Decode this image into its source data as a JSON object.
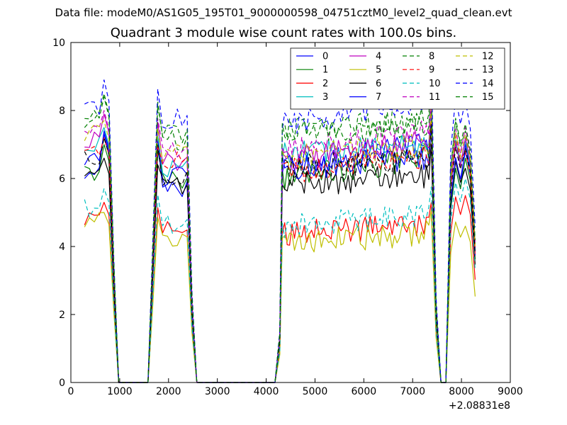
{
  "header": {
    "data_file": "Data file: modeM0/AS1G05_195T01_9000000598_04751cztM0_level2_quad_clean.evt"
  },
  "chart_data": {
    "type": "line",
    "title": "Quadrant 3 module wise count rates with 100.0s bins.",
    "xlabel": "",
    "ylabel": "",
    "xlim": [
      0,
      9000
    ],
    "ylim": [
      0,
      10
    ],
    "x_ticks": [
      0,
      1000,
      2000,
      3000,
      4000,
      5000,
      6000,
      7000,
      8000,
      9000
    ],
    "y_ticks": [
      0,
      2,
      4,
      6,
      8,
      10
    ],
    "x_offset_label": "+2.08831e8",
    "grid": false,
    "legend_placement": "top-right",
    "legend_columns": 4,
    "segments": [
      {
        "x": [
          280,
          380,
          480,
          580,
          680,
          780,
          880,
          980
        ]
      },
      {
        "x": [
          1580,
          1680,
          1780,
          1880,
          1980,
          2080,
          2180,
          2280,
          2380,
          2480,
          2580
        ]
      },
      {
        "x": [
          4180,
          4280,
          4330,
          4380,
          4430,
          4480,
          4530,
          4580,
          4630,
          4680,
          4730,
          4780,
          4830,
          4880,
          4930,
          4980,
          5030,
          5080,
          5130,
          5180,
          5230,
          5280,
          5330,
          5380,
          5430,
          5480,
          5530,
          5580,
          5630,
          5680,
          5730,
          5780,
          5830,
          5880,
          5930,
          5980,
          6030,
          6080,
          6130,
          6180,
          6230,
          6280,
          6330,
          6380,
          6430,
          6480,
          6530,
          6580,
          6630,
          6680,
          6730,
          6780,
          6830,
          6880,
          6930,
          6980,
          7030,
          7080,
          7130,
          7180,
          7230,
          7280,
          7330,
          7380,
          7480,
          7580
        ]
      },
      {
        "x": [
          7680,
          7780,
          7880,
          7980,
          8080,
          8180,
          8280
        ]
      }
    ],
    "gap_x": [
      1000,
      1580,
      2600,
      4180,
      7580,
      7780
    ],
    "series": [
      {
        "name": "0",
        "color": "#0000ff",
        "dash": "solid",
        "levels": [
          6.3,
          7.4,
          5.8,
          6.4,
          7.0,
          6.0,
          7.0
        ]
      },
      {
        "name": "1",
        "color": "#008000",
        "dash": "solid",
        "levels": [
          6.1,
          7.0,
          5.9,
          6.0,
          6.6,
          6.0,
          6.6
        ]
      },
      {
        "name": "2",
        "color": "#ff0000",
        "dash": "solid",
        "levels": [
          4.9,
          5.3,
          4.4,
          4.4,
          4.6,
          5.2,
          5.5
        ]
      },
      {
        "name": "3",
        "color": "#00bfbf",
        "dash": "solid",
        "levels": [
          6.8,
          7.5,
          6.4,
          6.7,
          7.0,
          6.8,
          7.1
        ]
      },
      {
        "name": "4",
        "color": "#bf00bf",
        "dash": "solid",
        "levels": [
          7.0,
          7.9,
          6.5,
          6.5,
          7.2,
          6.7,
          7.2
        ]
      },
      {
        "name": "5",
        "color": "#bfbf00",
        "dash": "solid",
        "levels": [
          4.6,
          5.0,
          4.2,
          4.1,
          4.4,
          4.5,
          4.6
        ]
      },
      {
        "name": "6",
        "color": "#000000",
        "dash": "solid",
        "levels": [
          6.0,
          6.6,
          5.7,
          5.8,
          6.1,
          6.2,
          6.3
        ]
      },
      {
        "name": "7",
        "color": "#0000ff",
        "dash": "solid",
        "levels": [
          6.6,
          7.3,
          6.0,
          6.3,
          6.6,
          6.3,
          6.8
        ]
      },
      {
        "name": "8",
        "color": "#008000",
        "dash": "dashed",
        "levels": [
          7.6,
          8.5,
          7.1,
          7.4,
          7.7,
          7.3,
          7.4
        ]
      },
      {
        "name": "9",
        "color": "#ff0000",
        "dash": "dashed",
        "levels": [
          6.8,
          7.2,
          6.5,
          6.2,
          6.7,
          6.9,
          6.8
        ]
      },
      {
        "name": "10",
        "color": "#00bfbf",
        "dash": "dashed",
        "levels": [
          5.1,
          5.7,
          4.7,
          4.6,
          5.0,
          5.6,
          6.0
        ]
      },
      {
        "name": "11",
        "color": "#bf00bf",
        "dash": "dashed",
        "levels": [
          7.2,
          8.0,
          6.8,
          6.8,
          7.4,
          7.1,
          7.5
        ]
      },
      {
        "name": "12",
        "color": "#bfbf00",
        "dash": "dashed",
        "levels": [
          7.3,
          7.7,
          6.8,
          6.6,
          7.0,
          7.0,
          7.3
        ]
      },
      {
        "name": "13",
        "color": "#000000",
        "dash": "dashed",
        "levels": [
          6.5,
          7.2,
          6.1,
          6.3,
          6.6,
          6.6,
          6.9
        ]
      },
      {
        "name": "14",
        "color": "#0000ff",
        "dash": "dashed",
        "levels": [
          8.0,
          8.9,
          7.7,
          7.6,
          8.3,
          8.0,
          8.3
        ]
      },
      {
        "name": "15",
        "color": "#008000",
        "dash": "dashed",
        "levels": [
          7.8,
          8.4,
          7.3,
          7.3,
          7.6,
          7.4,
          7.6
        ]
      }
    ]
  }
}
